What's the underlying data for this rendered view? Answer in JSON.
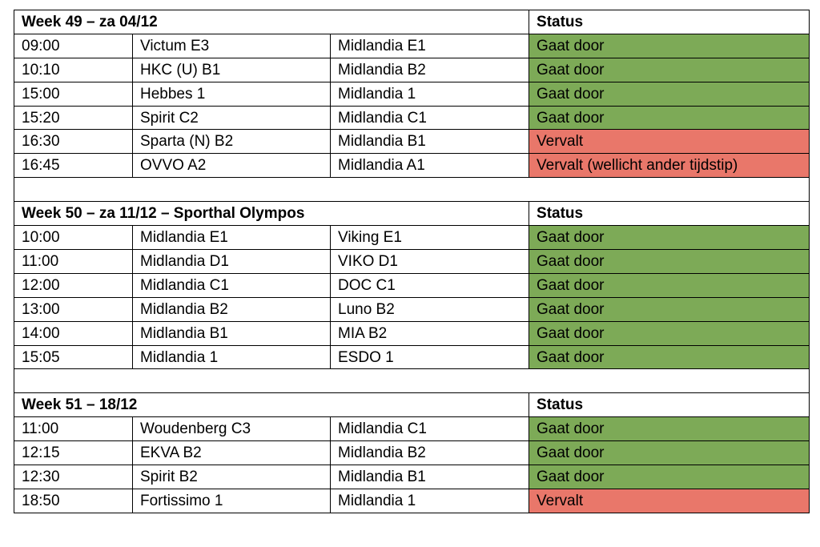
{
  "colors": {
    "ok": "#7daa57",
    "cancelled": "#e9776a"
  },
  "sections": [
    {
      "title": "Week 49 – za 04/12",
      "status_header": "Status",
      "rows": [
        {
          "time": "09:00",
          "home": "Victum E3",
          "away": "Midlandia E1",
          "status": "Gaat door",
          "state": "ok"
        },
        {
          "time": "10:10",
          "home": "HKC (U) B1",
          "away": "Midlandia B2",
          "status": "Gaat door",
          "state": "ok"
        },
        {
          "time": "15:00",
          "home": "Hebbes 1",
          "away": "Midlandia 1",
          "status": "Gaat door",
          "state": "ok"
        },
        {
          "time": "15:20",
          "home": "Spirit C2",
          "away": "Midlandia C1",
          "status": "Gaat door",
          "state": "ok"
        },
        {
          "time": "16:30",
          "home": "Sparta (N) B2",
          "away": "Midlandia B1",
          "status": "Vervalt",
          "state": "cancelled"
        },
        {
          "time": "16:45",
          "home": "OVVO A2",
          "away": "Midlandia A1",
          "status": "Vervalt (wellicht ander tijdstip)",
          "state": "cancelled"
        }
      ]
    },
    {
      "title": "Week 50 – za 11/12 – Sporthal Olympos",
      "status_header": "Status",
      "rows": [
        {
          "time": "10:00",
          "home": "Midlandia E1",
          "away": "Viking E1",
          "status": "Gaat door",
          "state": "ok"
        },
        {
          "time": "11:00",
          "home": "Midlandia D1",
          "away": "VIKO D1",
          "status": "Gaat door",
          "state": "ok"
        },
        {
          "time": "12:00",
          "home": "Midlandia C1",
          "away": "DOC C1",
          "status": "Gaat door",
          "state": "ok"
        },
        {
          "time": "13:00",
          "home": "Midlandia B2",
          "away": "Luno B2",
          "status": "Gaat door",
          "state": "ok"
        },
        {
          "time": "14:00",
          "home": "Midlandia B1",
          "away": "MIA B2",
          "status": "Gaat door",
          "state": "ok"
        },
        {
          "time": "15:05",
          "home": "Midlandia 1",
          "away": "ESDO 1",
          "status": "Gaat door",
          "state": "ok"
        }
      ]
    },
    {
      "title": "Week 51 – 18/12",
      "status_header": "Status",
      "rows": [
        {
          "time": "11:00",
          "home": "Woudenberg C3",
          "away": "Midlandia C1",
          "status": "Gaat door",
          "state": "ok"
        },
        {
          "time": "12:15",
          "home": "EKVA B2",
          "away": "Midlandia B2",
          "status": "Gaat door",
          "state": "ok"
        },
        {
          "time": "12:30",
          "home": "Spirit B2",
          "away": "Midlandia B1",
          "status": "Gaat door",
          "state": "ok"
        },
        {
          "time": "18:50",
          "home": "Fortissimo 1",
          "away": "Midlandia 1",
          "status": "Vervalt",
          "state": "cancelled"
        }
      ]
    }
  ]
}
